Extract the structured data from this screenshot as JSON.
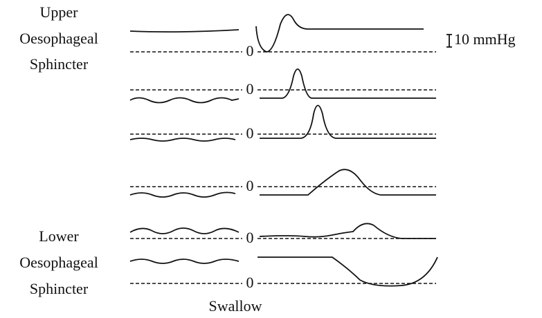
{
  "labels": {
    "upper": [
      "Upper",
      "Oesophageal",
      "Sphincter"
    ],
    "lower": [
      "Lower",
      "Oesophageal",
      "Sphincter"
    ]
  },
  "scale": "10 mmHg",
  "traces": [
    {
      "baseline_label": "0"
    },
    {
      "baseline_label": "0"
    },
    {
      "baseline_label": "0"
    },
    {
      "baseline_label": "0"
    },
    {
      "baseline_label": "0"
    },
    {
      "baseline_label": "0"
    }
  ],
  "event": "Swallow"
}
